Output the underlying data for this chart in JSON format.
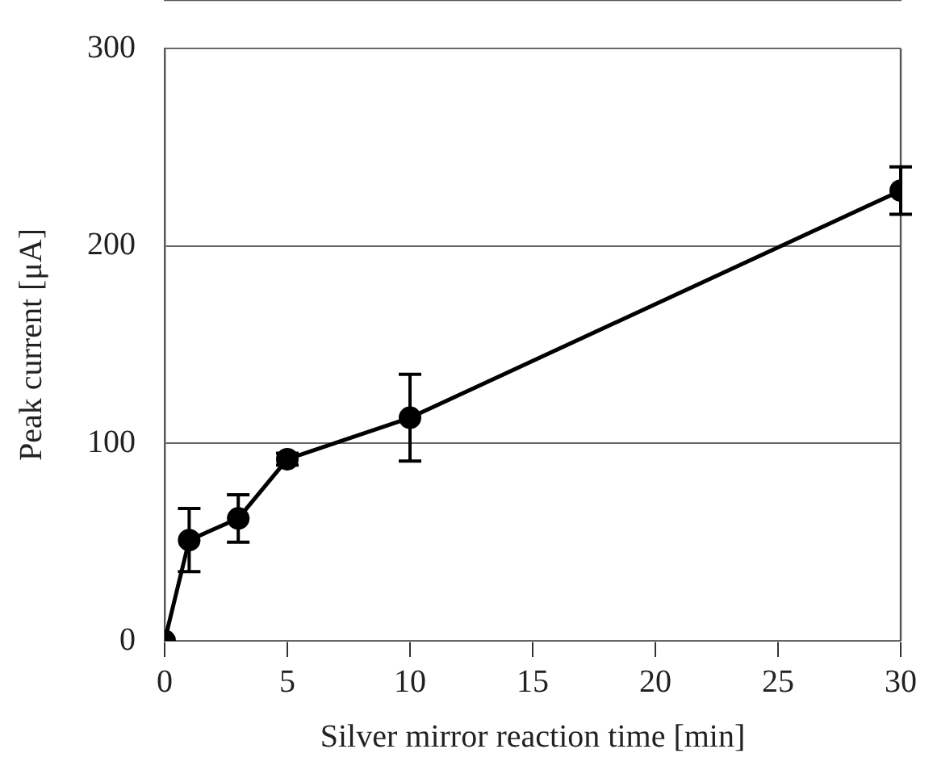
{
  "chart_data": {
    "type": "line",
    "xlabel": "Silver mirror reaction time [min]",
    "ylabel": "Peak current [μA]",
    "x": [
      0,
      1,
      3,
      5,
      10,
      30
    ],
    "series": [
      {
        "color": "#000000",
        "values": [
          0,
          51,
          62,
          92,
          113,
          228
        ],
        "errors": [
          null,
          16,
          12,
          3,
          22,
          12
        ]
      }
    ],
    "xlim": [
      0,
      30
    ],
    "xticks": [
      0,
      5,
      10,
      15,
      20,
      25,
      30
    ],
    "ylim": [
      0,
      300
    ],
    "yticks": [
      0,
      100,
      200,
      300
    ],
    "grid": "y",
    "legend": false,
    "marker": "circle",
    "line_style": "solid"
  }
}
